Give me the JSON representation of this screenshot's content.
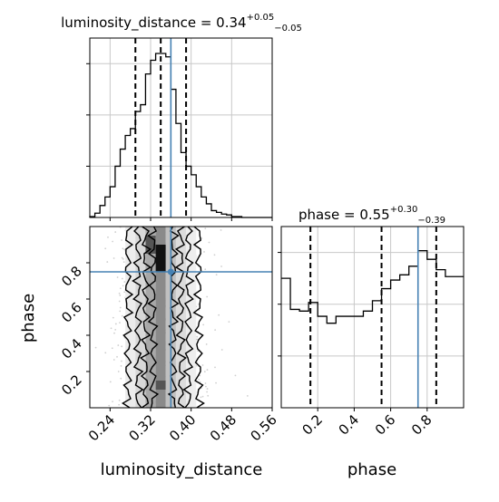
{
  "chart_data": {
    "type": "corner",
    "parameters": [
      "luminosity_distance",
      "phase"
    ],
    "truths": {
      "luminosity_distance": 0.36,
      "phase": 0.75
    },
    "grid": true,
    "panels": [
      {
        "id": "hist_luminosity_distance",
        "type": "step_histogram",
        "title": {
          "prefix": "luminosity_distance = 0.34",
          "sup": "+0.05",
          "sub": "−0.05"
        },
        "bin_edges": [
          0.2,
          0.21,
          0.22,
          0.23,
          0.24,
          0.25,
          0.26,
          0.27,
          0.28,
          0.29,
          0.3,
          0.31,
          0.32,
          0.33,
          0.34,
          0.35,
          0.36,
          0.37,
          0.38,
          0.39,
          0.4,
          0.41,
          0.42,
          0.43,
          0.44,
          0.45,
          0.46,
          0.47,
          0.48,
          0.49,
          0.5,
          0.51,
          0.52,
          0.53,
          0.54,
          0.55,
          0.56
        ],
        "counts": [
          0.5,
          2.5,
          7,
          12,
          18,
          30,
          40,
          48,
          52,
          62,
          66,
          84,
          92,
          96,
          96,
          94,
          75,
          55,
          38,
          30,
          25,
          18,
          12,
          8,
          4,
          3,
          2,
          1.5,
          0.5,
          0.5,
          0,
          0,
          0,
          0,
          0,
          0
        ],
        "ylim": [
          0,
          105
        ],
        "quantile_lines": [
          0.29,
          0.34,
          0.39
        ],
        "xlim": [
          0.2,
          0.56
        ]
      },
      {
        "id": "hist_phase",
        "type": "step_histogram",
        "title": {
          "prefix": "phase = 0.55",
          "sup": "+0.30",
          "sub": "−0.39"
        },
        "bin_edges": [
          0.0,
          0.05,
          0.1,
          0.15,
          0.2,
          0.25,
          0.3,
          0.35,
          0.4,
          0.45,
          0.5,
          0.55,
          0.6,
          0.65,
          0.7,
          0.75,
          0.8,
          0.85,
          0.9,
          0.95,
          1.0
        ],
        "counts": [
          75,
          57,
          56,
          61,
          53,
          49,
          53,
          53,
          53,
          56,
          62,
          69,
          74,
          77,
          82,
          91,
          86,
          80,
          76,
          76
        ],
        "ylim": [
          0,
          105
        ],
        "quantile_lines": [
          0.16,
          0.55,
          0.85
        ],
        "xlim": [
          0.0,
          1.0
        ]
      },
      {
        "id": "joint_luminosity_distance_phase",
        "type": "2d_density_contour",
        "xlim": [
          0.2,
          0.56
        ],
        "ylim": [
          0.0,
          1.0
        ],
        "contour_center_x": [
          0.32,
          0.34,
          0.36
        ],
        "contour_halfwidths": [
          0.02,
          0.035,
          0.05,
          0.07
        ]
      }
    ],
    "axes": {
      "x_bottom_left": {
        "label": "luminosity_distance",
        "ticks": [
          "0.24",
          "0.32",
          "0.40",
          "0.48",
          "0.56"
        ],
        "tick_values": [
          0.24,
          0.32,
          0.4,
          0.48,
          0.56
        ]
      },
      "y_bottom_left": {
        "label": "phase",
        "ticks": [
          "0.2",
          "0.4",
          "0.6",
          "0.8"
        ],
        "tick_values": [
          0.2,
          0.4,
          0.6,
          0.8
        ]
      },
      "x_bottom_right": {
        "label": "phase",
        "ticks": [
          "0.2",
          "0.4",
          "0.6",
          "0.8"
        ],
        "tick_values": [
          0.2,
          0.4,
          0.6,
          0.8
        ]
      }
    },
    "colors": {
      "truth": "#4682b4",
      "line": "#000000",
      "grid": "#c8c8c8",
      "scatter": "#b0b0b0"
    }
  }
}
